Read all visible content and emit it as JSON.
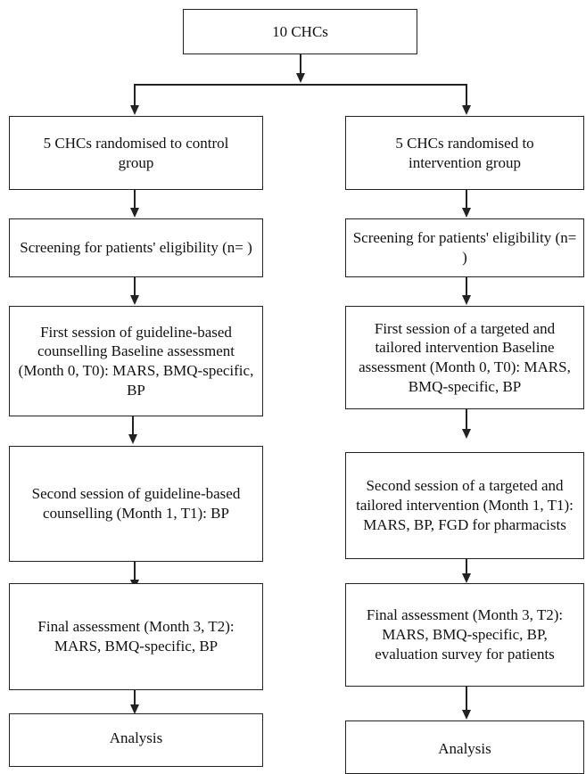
{
  "top_box": {
    "text": "10 CHCs"
  },
  "control": {
    "randomise": "5 CHCs randomised to control group",
    "screening": "Screening for patients' eligibility (n= )",
    "session1": "First session of guideline-based counselling Baseline assessment (Month 0, T0): MARS, BMQ-specific, BP",
    "session2": "Second session of guideline-based counselling (Month 1, T1): BP",
    "final": "Final assessment (Month 3, T2): MARS, BMQ-specific, BP",
    "analysis": "Analysis"
  },
  "intervention": {
    "randomise": "5 CHCs randomised to intervention group",
    "screening": "Screening for patients' eligibility (n= )",
    "session1": "First session of a targeted and tailored intervention Baseline assessment (Month 0, T0): MARS, BMQ-specific, BP",
    "session2": "Second session of a targeted and tailored intervention (Month 1, T1): MARS, BP, FGD for pharmacists",
    "final": "Final assessment (Month 3, T2): MARS, BMQ-specific, BP, evaluation survey for patients",
    "analysis": "Analysis"
  }
}
